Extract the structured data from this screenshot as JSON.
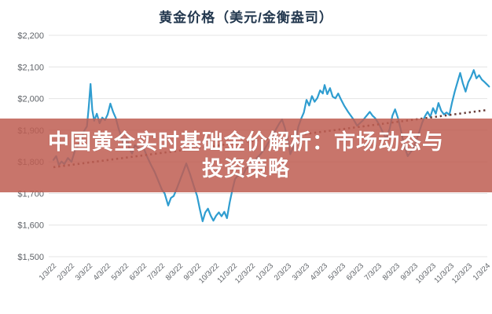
{
  "overlay_banner": {
    "lines": [
      "中国黄全实时基础金价解析：市场动态与",
      "投资策略"
    ],
    "bg_color": "rgba(191,94,83,0.86)",
    "text_color": "#ffffff"
  },
  "chart_data": {
    "type": "line",
    "title": "黄金价格（美元/金衡盎司）",
    "xlabel": "",
    "ylabel": "",
    "ylim": [
      1500,
      2200
    ],
    "grid": true,
    "legend_position": "none",
    "y_ticks": [
      {
        "label": "$2,200",
        "value": 2200
      },
      {
        "label": "$2,100",
        "value": 2100
      },
      {
        "label": "$2,000",
        "value": 2000
      },
      {
        "label": "$1,900",
        "value": 1900
      },
      {
        "label": "$1,800",
        "value": 1800
      },
      {
        "label": "$1,700",
        "value": 1700
      },
      {
        "label": "$1,600",
        "value": 1600
      },
      {
        "label": "$1,500",
        "value": 1500
      }
    ],
    "x_tick_labels": [
      "1/3/22",
      "2/3/22",
      "3/3/22",
      "4/3/22",
      "5/3/22",
      "6/3/22",
      "7/3/22",
      "8/3/22",
      "9/3/22",
      "10/3/22",
      "11/3/22",
      "12/3/22",
      "1/3/23",
      "2/3/23",
      "3/3/23",
      "4/3/23",
      "5/3/23",
      "6/3/23",
      "7/3/23",
      "8/3/23",
      "9/3/23",
      "10/3/23",
      "11/3/23",
      "12/3/23",
      "1/3/24"
    ],
    "series": [
      {
        "name": "gold_price_usd_per_troy_oz",
        "style": "solid",
        "color": "#2f9dd0",
        "points": [
          [
            0,
            1806
          ],
          [
            0.15,
            1818
          ],
          [
            0.3,
            1790
          ],
          [
            0.45,
            1801
          ],
          [
            0.6,
            1793
          ],
          [
            0.8,
            1812
          ],
          [
            1,
            1800
          ],
          [
            1.2,
            1838
          ],
          [
            1.4,
            1852
          ],
          [
            1.55,
            1874
          ],
          [
            1.7,
            1898
          ],
          [
            1.85,
            1912
          ],
          [
            1.95,
            1970
          ],
          [
            2.05,
            2046
          ],
          [
            2.15,
            1964
          ],
          [
            2.25,
            1930
          ],
          [
            2.4,
            1952
          ],
          [
            2.55,
            1922
          ],
          [
            2.7,
            1940
          ],
          [
            2.85,
            1932
          ],
          [
            3,
            1950
          ],
          [
            3.15,
            1984
          ],
          [
            3.3,
            1958
          ],
          [
            3.45,
            1938
          ],
          [
            3.6,
            1906
          ],
          [
            3.75,
            1880
          ],
          [
            3.9,
            1852
          ],
          [
            4.05,
            1876
          ],
          [
            4.2,
            1842
          ],
          [
            4.35,
            1826
          ],
          [
            4.5,
            1852
          ],
          [
            4.65,
            1846
          ],
          [
            4.8,
            1838
          ],
          [
            5,
            1842
          ],
          [
            5.2,
            1814
          ],
          [
            5.4,
            1790
          ],
          [
            5.6,
            1768
          ],
          [
            5.8,
            1740
          ],
          [
            6,
            1712
          ],
          [
            6.15,
            1700
          ],
          [
            6.35,
            1662
          ],
          [
            6.5,
            1686
          ],
          [
            6.65,
            1692
          ],
          [
            6.8,
            1712
          ],
          [
            7,
            1742
          ],
          [
            7.2,
            1772
          ],
          [
            7.35,
            1795
          ],
          [
            7.55,
            1762
          ],
          [
            7.75,
            1726
          ],
          [
            7.95,
            1692
          ],
          [
            8.1,
            1650
          ],
          [
            8.25,
            1612
          ],
          [
            8.4,
            1640
          ],
          [
            8.55,
            1652
          ],
          [
            8.7,
            1630
          ],
          [
            8.85,
            1614
          ],
          [
            9,
            1630
          ],
          [
            9.15,
            1640
          ],
          [
            9.3,
            1628
          ],
          [
            9.45,
            1642
          ],
          [
            9.6,
            1622
          ],
          [
            9.75,
            1672
          ],
          [
            9.9,
            1712
          ],
          [
            10.05,
            1746
          ],
          [
            10.25,
            1760
          ],
          [
            10.45,
            1754
          ],
          [
            10.65,
            1778
          ],
          [
            10.85,
            1788
          ],
          [
            11.05,
            1800
          ],
          [
            11.25,
            1812
          ],
          [
            11.45,
            1824
          ],
          [
            11.7,
            1842
          ],
          [
            11.9,
            1862
          ],
          [
            12.1,
            1878
          ],
          [
            12.3,
            1902
          ],
          [
            12.5,
            1922
          ],
          [
            12.65,
            1934
          ],
          [
            12.8,
            1908
          ],
          [
            13,
            1862
          ],
          [
            13.1,
            1824
          ],
          [
            13.25,
            1844
          ],
          [
            13.4,
            1868
          ],
          [
            13.55,
            1912
          ],
          [
            13.7,
            1936
          ],
          [
            13.85,
            1956
          ],
          [
            14,
            1996
          ],
          [
            14.15,
            1978
          ],
          [
            14.3,
            2008
          ],
          [
            14.45,
            1990
          ],
          [
            14.6,
            2002
          ],
          [
            14.75,
            2026
          ],
          [
            14.9,
            2016
          ],
          [
            15,
            2043
          ],
          [
            15.15,
            2014
          ],
          [
            15.3,
            2033
          ],
          [
            15.45,
            2006
          ],
          [
            15.6,
            2001
          ],
          [
            15.75,
            2016
          ],
          [
            15.9,
            1998
          ],
          [
            16.1,
            1976
          ],
          [
            16.3,
            1958
          ],
          [
            16.45,
            1946
          ],
          [
            16.6,
            1934
          ],
          [
            16.8,
            1914
          ],
          [
            16.95,
            1922
          ],
          [
            17.1,
            1930
          ],
          [
            17.3,
            1944
          ],
          [
            17.5,
            1958
          ],
          [
            17.65,
            1946
          ],
          [
            17.8,
            1938
          ],
          [
            18,
            1920
          ],
          [
            18.2,
            1896
          ],
          [
            18.4,
            1874
          ],
          [
            18.6,
            1904
          ],
          [
            18.75,
            1946
          ],
          [
            18.9,
            1966
          ],
          [
            19.05,
            1940
          ],
          [
            19.2,
            1905
          ],
          [
            19.4,
            1852
          ],
          [
            19.6,
            1818
          ],
          [
            19.8,
            1834
          ],
          [
            20,
            1856
          ],
          [
            20.2,
            1888
          ],
          [
            20.4,
            1924
          ],
          [
            20.55,
            1944
          ],
          [
            20.7,
            1958
          ],
          [
            20.85,
            1942
          ],
          [
            21,
            1970
          ],
          [
            21.15,
            1952
          ],
          [
            21.3,
            1986
          ],
          [
            21.45,
            1962
          ],
          [
            21.6,
            1950
          ],
          [
            21.75,
            1956
          ],
          [
            21.9,
            1948
          ],
          [
            22.05,
            1988
          ],
          [
            22.2,
            2022
          ],
          [
            22.35,
            2052
          ],
          [
            22.5,
            2081
          ],
          [
            22.65,
            2048
          ],
          [
            22.8,
            2022
          ],
          [
            22.95,
            2052
          ],
          [
            23.1,
            2068
          ],
          [
            23.25,
            2090
          ],
          [
            23.4,
            2064
          ],
          [
            23.55,
            2074
          ],
          [
            23.7,
            2060
          ],
          [
            23.85,
            2052
          ],
          [
            24,
            2044
          ],
          [
            24.1,
            2038
          ]
        ]
      },
      {
        "name": "trendline",
        "style": "dotted",
        "color": "#6a403c",
        "points": [
          [
            0,
            1783
          ],
          [
            24,
            1964
          ]
        ]
      }
    ]
  }
}
